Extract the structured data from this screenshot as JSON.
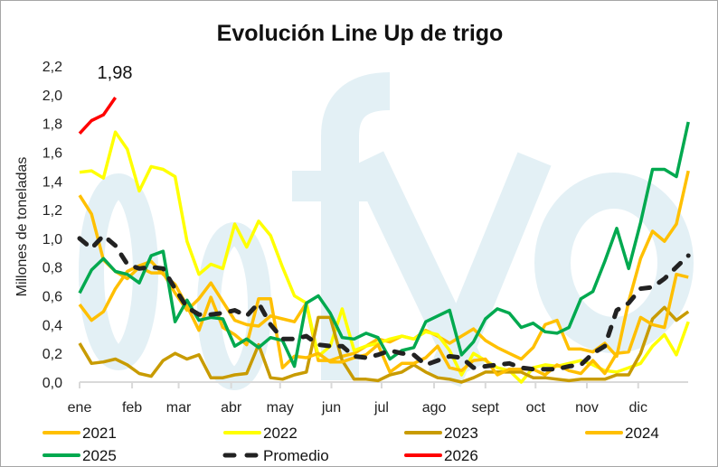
{
  "chart_data": {
    "type": "line",
    "title": "Evolución Line Up de trigo",
    "xlabel": "",
    "ylabel": "Millones de toneladas",
    "ylim": [
      0,
      2.2
    ],
    "yticks": [
      "0,0",
      "0,2",
      "0,4",
      "0,6",
      "0,8",
      "1,0",
      "1,2",
      "1,4",
      "1,6",
      "1,8",
      "2,0",
      "2,2"
    ],
    "ytick_values": [
      0,
      0.2,
      0.4,
      0.6,
      0.8,
      1.0,
      1.2,
      1.4,
      1.6,
      1.8,
      2.0,
      2.2
    ],
    "xticks": [
      "ene",
      "feb",
      "mar",
      "abr",
      "may",
      "jun",
      "jul",
      "ago",
      "sept",
      "oct",
      "nov",
      "dic"
    ],
    "xtick_weeks": [
      0,
      4.4,
      8.3,
      12.7,
      16.8,
      21.1,
      25.3,
      29.7,
      34,
      38.2,
      42.5,
      46.8
    ],
    "x_unit": "week of year (0-51)",
    "grid": false,
    "legend_position": "bottom",
    "watermark": "fyo",
    "annotation": {
      "text": "1,98",
      "series": "2026"
    },
    "series": [
      {
        "name": "2021",
        "color": "#FFC000",
        "dashed": false,
        "values": [
          1.3,
          1.17,
          0.85,
          0.77,
          0.72,
          0.8,
          0.76,
          0.76,
          0.62,
          0.5,
          0.58,
          0.69,
          0.56,
          0.43,
          0.4,
          0.39,
          0.46,
          0.44,
          0.42,
          0.55,
          0.15,
          0.15,
          0.18,
          0.2,
          0.25,
          0.3,
          0.28,
          0.32,
          0.3,
          0.36,
          0.32,
          0.27,
          0.32,
          0.37,
          0.29,
          0.24,
          0.2,
          0.16,
          0.24,
          0.4,
          0.43,
          0.23,
          0.23,
          0.21,
          0.27,
          0.18,
          0.56,
          0.86,
          1.05,
          0.98,
          1.1,
          1.47
        ]
      },
      {
        "name": "2022",
        "color": "#FFFF00",
        "dashed": false,
        "values": [
          1.46,
          1.47,
          1.42,
          1.74,
          1.62,
          1.33,
          1.5,
          1.48,
          1.43,
          0.98,
          0.75,
          0.82,
          0.79,
          1.1,
          0.94,
          1.12,
          1.02,
          0.8,
          0.6,
          0.55,
          0.18,
          0.25,
          0.51,
          0.22,
          0.25,
          0.27,
          0.3,
          0.32,
          0.3,
          0.35,
          0.33,
          0.22,
          0.05,
          0.2,
          0.15,
          0.1,
          0.08,
          0.0,
          0.1,
          0.12,
          0.11,
          0.13,
          0.15,
          0.12,
          0.08,
          0.07,
          0.1,
          0.13,
          0.25,
          0.33,
          0.19,
          0.42
        ]
      },
      {
        "name": "2023",
        "color": "#C89B00",
        "dashed": false,
        "values": [
          0.27,
          0.13,
          0.14,
          0.16,
          0.12,
          0.06,
          0.04,
          0.15,
          0.2,
          0.16,
          0.19,
          0.03,
          0.03,
          0.05,
          0.06,
          0.26,
          0.03,
          0.02,
          0.05,
          0.07,
          0.45,
          0.45,
          0.15,
          0.02,
          0.02,
          0.01,
          0.05,
          0.07,
          0.12,
          0.07,
          0.03,
          0.02,
          0.0,
          0.03,
          0.07,
          0.07,
          0.07,
          0.07,
          0.03,
          0.03,
          0.02,
          0.01,
          0.02,
          0.02,
          0.02,
          0.05,
          0.05,
          0.2,
          0.44,
          0.52,
          0.43,
          0.49
        ]
      },
      {
        "name": "2024",
        "color": "#FFBF00",
        "dashed": false,
        "values": [
          0.54,
          0.43,
          0.49,
          0.65,
          0.77,
          0.81,
          0.84,
          0.75,
          0.68,
          0.53,
          0.36,
          0.59,
          0.38,
          0.33,
          0.26,
          0.58,
          0.58,
          0.1,
          0.18,
          0.17,
          0.2,
          0.14,
          0.14,
          0.17,
          0.19,
          0.26,
          0.07,
          0.13,
          0.13,
          0.17,
          0.25,
          0.1,
          0.08,
          0.15,
          0.16,
          0.05,
          0.09,
          0.09,
          0.09,
          0.05,
          0.12,
          0.08,
          0.06,
          0.15,
          0.06,
          0.2,
          0.21,
          0.45,
          0.4,
          0.38,
          0.75,
          0.73
        ]
      },
      {
        "name": "2025",
        "color": "#00A94F",
        "dashed": false,
        "values": [
          0.62,
          0.78,
          0.86,
          0.77,
          0.75,
          0.69,
          0.88,
          0.91,
          0.42,
          0.57,
          0.43,
          0.45,
          0.44,
          0.25,
          0.3,
          0.24,
          0.31,
          0.29,
          0.11,
          0.55,
          0.6,
          0.48,
          0.31,
          0.3,
          0.34,
          0.31,
          0.16,
          0.22,
          0.24,
          0.42,
          0.46,
          0.5,
          0.19,
          0.28,
          0.44,
          0.51,
          0.48,
          0.38,
          0.41,
          0.35,
          0.34,
          0.38,
          0.58,
          0.63,
          0.84,
          1.07,
          0.79,
          1.11,
          1.48,
          1.48,
          1.43,
          1.81
        ]
      },
      {
        "name": "Promedio",
        "color": "#222222",
        "dashed": true,
        "values": [
          1.0,
          0.93,
          1.02,
          0.95,
          0.82,
          0.79,
          0.8,
          0.79,
          0.65,
          0.52,
          0.47,
          0.47,
          0.48,
          0.5,
          0.46,
          0.55,
          0.4,
          0.3,
          0.3,
          0.32,
          0.26,
          0.25,
          0.25,
          0.18,
          0.17,
          0.19,
          0.22,
          0.2,
          0.19,
          0.12,
          0.15,
          0.18,
          0.17,
          0.1,
          0.11,
          0.12,
          0.13,
          0.1,
          0.09,
          0.09,
          0.09,
          0.11,
          0.12,
          0.2,
          0.25,
          0.5,
          0.55,
          0.65,
          0.66,
          0.72,
          0.8,
          0.88
        ]
      },
      {
        "name": "2026",
        "color": "#FF0000",
        "dashed": false,
        "values": [
          1.73,
          1.82,
          1.86,
          1.98
        ]
      }
    ]
  }
}
